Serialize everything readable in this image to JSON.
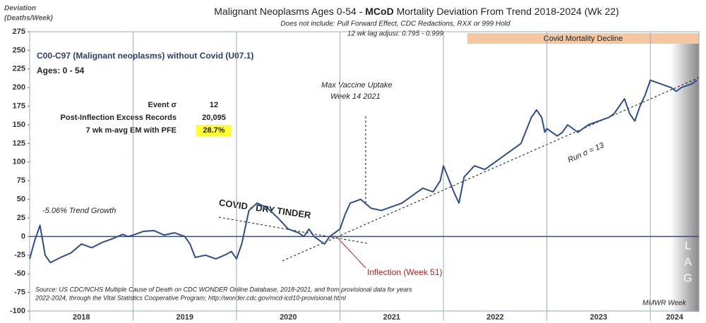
{
  "chart_data": {
    "type": "line",
    "title_parts": [
      "Malignant Neoplasms Ages 0-54 - ",
      "MCoD",
      " Mortality Deviation From Trend  2018-2024 (Wk 22)"
    ],
    "subtitle": [
      "Does not include: Pull Forward Effect,  CDC Redactions, RXX or 999 Hold",
      "12 wk lag adjust: 0.795 - 0.999"
    ],
    "ylabel": [
      "Deviation",
      "(Deaths/Week)"
    ],
    "info": [
      "C00-C97 (Malignant neoplasms) without Covid (U07.1)",
      "Ages: 0 - 54"
    ],
    "stats": [
      [
        "Event σ",
        "12"
      ],
      [
        "Post-Inflection Excess Records",
        "20,095"
      ],
      [
        "7 wk m-avg EM with PFE",
        "28.7%"
      ]
    ],
    "annotations": {
      "trend": "-5.06% Trend Growth",
      "tinder": "COVID - DRY TINDER",
      "vaccine": [
        "Max Vaccine Uptake",
        "Week 14 2021"
      ],
      "run": "Run σ = 13",
      "inflection": "Inflection (Week 51)",
      "decline": "Covid Mortality Decline",
      "lag": "LAG",
      "mmwr": "MMWR Week"
    },
    "source": [
      "Source: US CDC/NCHS Multiple Cause of Death on CDC WONDER Online Database, 2018-2021, and from provisional data for years",
      "2022-2024, through the Vital Statistics Cooperative Program; http://wonder.cdc.gov/mcd-icd10-provisional.html"
    ],
    "xlim": [
      2018,
      2024.47
    ],
    "xticks": [
      {
        "value": 2018,
        "label": "2018"
      },
      {
        "value": 2019,
        "label": "2019"
      },
      {
        "value": 2020,
        "label": "2020"
      },
      {
        "value": 2021,
        "label": "2021"
      },
      {
        "value": 2022,
        "label": "2022"
      },
      {
        "value": 2023,
        "label": "2023"
      },
      {
        "value": 2024,
        "label": "2024"
      }
    ],
    "ylim": [
      -100,
      275
    ],
    "yticks": [
      -100,
      -75,
      -50,
      -25,
      0,
      25,
      50,
      75,
      100,
      125,
      150,
      175,
      200,
      225,
      250,
      275
    ],
    "series": [
      {
        "name": "C00-C97 deviation",
        "color": "#2c4d8e",
        "x": [
          2018.0,
          2018.05,
          2018.1,
          2018.15,
          2018.2,
          2018.3,
          2018.4,
          2018.5,
          2018.6,
          2018.7,
          2018.8,
          2018.9,
          2018.95,
          2019.0,
          2019.1,
          2019.2,
          2019.3,
          2019.4,
          2019.5,
          2019.55,
          2019.6,
          2019.7,
          2019.8,
          2019.9,
          2019.95,
          2020.0,
          2020.05,
          2020.12,
          2020.2,
          2020.3,
          2020.4,
          2020.5,
          2020.6,
          2020.65,
          2020.7,
          2020.75,
          2020.8,
          2020.85,
          2020.9,
          2020.95,
          2021.0,
          2021.05,
          2021.1,
          2021.2,
          2021.3,
          2021.4,
          2021.5,
          2021.6,
          2021.7,
          2021.8,
          2021.9,
          2021.97,
          2022.0,
          2022.1,
          2022.15,
          2022.2,
          2022.3,
          2022.4,
          2022.5,
          2022.6,
          2022.7,
          2022.75,
          2022.85,
          2022.9,
          2022.95,
          2022.98,
          2023.0,
          2023.1,
          2023.15,
          2023.2,
          2023.3,
          2023.4,
          2023.5,
          2023.6,
          2023.65,
          2023.7,
          2023.75,
          2023.8,
          2023.85,
          2023.9,
          2023.95,
          2024.0,
          2024.1,
          2024.2,
          2024.25,
          2024.3,
          2024.4,
          2024.45
        ],
        "values": [
          -30,
          -5,
          15,
          -25,
          -35,
          -28,
          -22,
          -10,
          -15,
          -8,
          -3,
          3,
          0,
          2,
          7,
          8,
          2,
          5,
          0,
          -10,
          -28,
          -25,
          -30,
          -24,
          -20,
          -30,
          -10,
          35,
          45,
          38,
          25,
          10,
          5,
          0,
          10,
          0,
          -5,
          -10,
          0,
          5,
          10,
          30,
          45,
          50,
          38,
          35,
          40,
          45,
          55,
          65,
          60,
          75,
          95,
          60,
          45,
          80,
          95,
          90,
          100,
          110,
          120,
          125,
          160,
          170,
          160,
          140,
          145,
          135,
          140,
          150,
          140,
          150,
          155,
          160,
          165,
          175,
          185,
          165,
          155,
          175,
          190,
          210,
          205,
          200,
          195,
          200,
          205,
          210
        ]
      }
    ]
  }
}
